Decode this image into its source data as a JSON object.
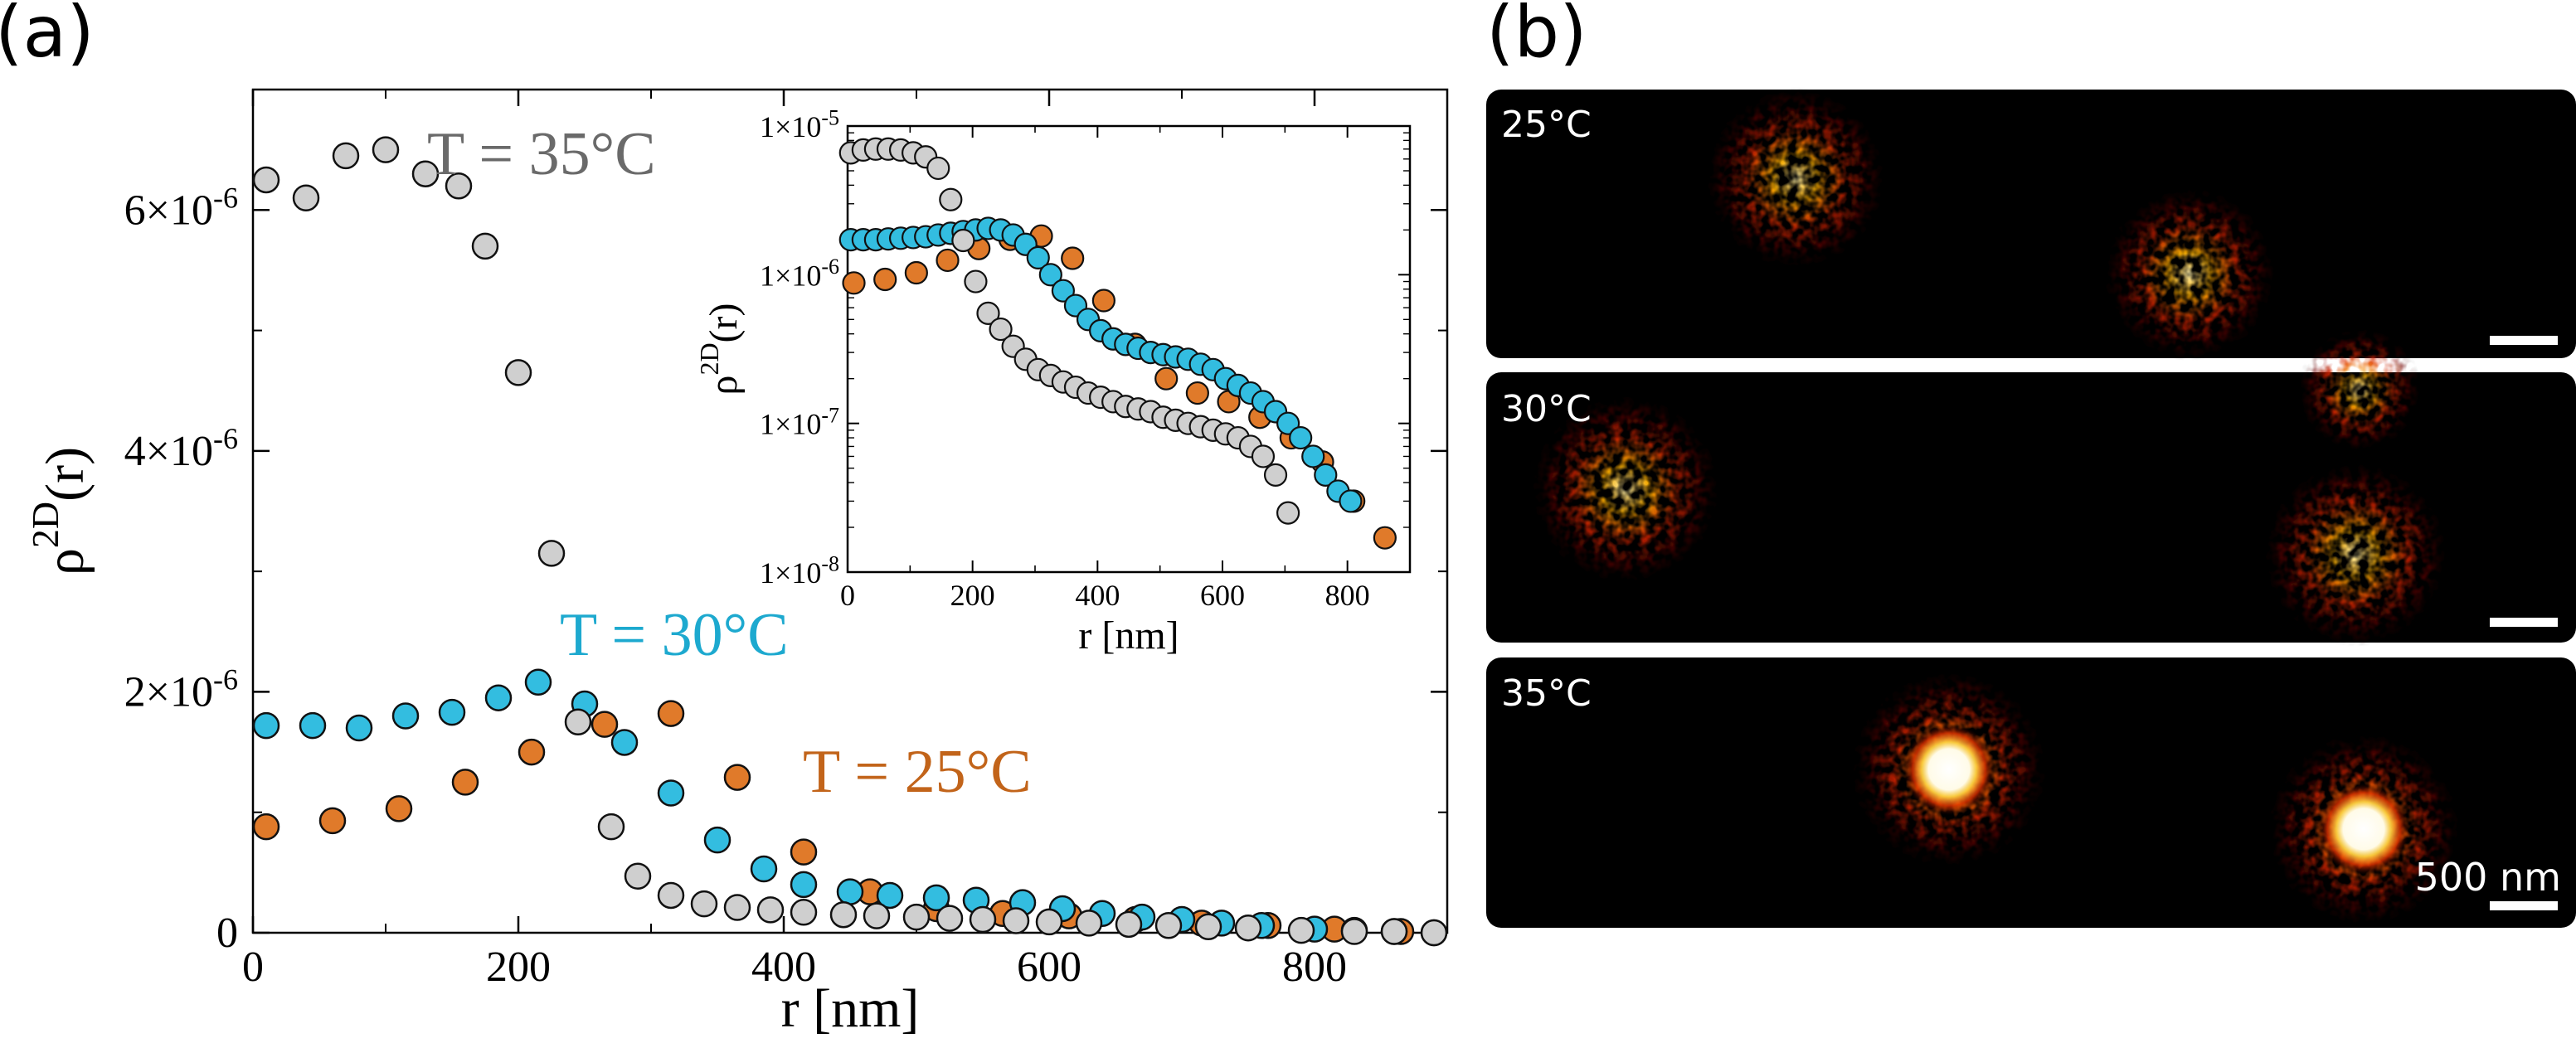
{
  "panels": {
    "a_label": "(a)",
    "b_label": "(b)"
  },
  "chart_data": [
    {
      "type": "scatter",
      "xlabel": "r [nm]",
      "ylabel_base": "ρ",
      "ylabel_sup": "2D",
      "ylabel_tail": "(r)",
      "xlim": [
        0,
        900
      ],
      "ylim": [
        0,
        7e-06
      ],
      "x_ticks": [
        0,
        200,
        400,
        600,
        800
      ],
      "x_tick_labels": [
        "0",
        "200",
        "400",
        "600",
        "800"
      ],
      "y_ticks": [
        0,
        2e-06,
        4e-06,
        6e-06
      ],
      "y_tick_labels": [
        {
          "base": "0",
          "exp": ""
        },
        {
          "base": "2×10",
          "exp": "-6"
        },
        {
          "base": "4×10",
          "exp": "-6"
        },
        {
          "base": "6×10",
          "exp": "-6"
        }
      ],
      "series": [
        {
          "name": "T = 35°C",
          "color": "#cfcfcf",
          "label_color": "#6a6a6a",
          "x": [
            10,
            40,
            70,
            100,
            130,
            155,
            175,
            200,
            225,
            245,
            270,
            290,
            315,
            340,
            365,
            390,
            415,
            445,
            470,
            500,
            525,
            550,
            575,
            600,
            630,
            660,
            690,
            720,
            750,
            790,
            830,
            860,
            890
          ],
          "y": [
            6.25e-06,
            6.1e-06,
            6.45e-06,
            6.5e-06,
            6.3e-06,
            6.2e-06,
            5.7e-06,
            4.65e-06,
            3.15e-06,
            1.75e-06,
            8.8e-07,
            4.7e-07,
            3.1e-07,
            2.4e-07,
            2.1e-07,
            1.9e-07,
            1.7e-07,
            1.5e-07,
            1.4e-07,
            1.3e-07,
            1.2e-07,
            1.1e-07,
            1e-07,
            9e-08,
            8e-08,
            7e-08,
            6e-08,
            5e-08,
            4e-08,
            2e-08,
            1e-08,
            1e-08,
            0.0
          ]
        },
        {
          "name": "T = 30°C",
          "color": "#33bde0",
          "label_color": "#1da9cf",
          "x": [
            10,
            45,
            80,
            115,
            150,
            185,
            215,
            250,
            280,
            315,
            350,
            385,
            415,
            450,
            480,
            515,
            545,
            580,
            610,
            640,
            670,
            700,
            730,
            760,
            800,
            830,
            860,
            890
          ],
          "y": [
            1.72e-06,
            1.72e-06,
            1.7e-06,
            1.8e-06,
            1.83e-06,
            1.95e-06,
            2.08e-06,
            1.9e-06,
            1.58e-06,
            1.16e-06,
            7.7e-07,
            5.3e-07,
            4e-07,
            3.4e-07,
            3.1e-07,
            2.9e-07,
            2.7e-07,
            2.5e-07,
            2e-07,
            1.6e-07,
            1.3e-07,
            1.1e-07,
            8e-08,
            6e-08,
            3e-08,
            2e-08,
            1e-08,
            0.0
          ]
        },
        {
          "name": "T = 25°C",
          "color": "#e07a2a",
          "label_color": "#c2641a",
          "x": [
            10,
            60,
            110,
            160,
            210,
            265,
            315,
            365,
            415,
            465,
            515,
            565,
            615,
            665,
            715,
            765,
            815,
            865
          ],
          "y": [
            8.8e-07,
            9.3e-07,
            1.03e-06,
            1.25e-06,
            1.5e-06,
            1.73e-06,
            1.82e-06,
            1.29e-06,
            6.7e-07,
            3.4e-07,
            2e-07,
            1.6e-07,
            1.4e-07,
            1.1e-07,
            8e-08,
            6e-08,
            3e-08,
            1e-08
          ]
        }
      ]
    },
    {
      "type": "scatter",
      "scale": "log",
      "xlabel": "r [nm]",
      "ylabel_base": "ρ",
      "ylabel_sup": "2D",
      "ylabel_tail": "(r)",
      "xlim": [
        0,
        900
      ],
      "ylim": [
        1e-08,
        1e-05
      ],
      "x_ticks": [
        0,
        200,
        400,
        600,
        800
      ],
      "x_tick_labels": [
        "0",
        "200",
        "400",
        "600",
        "800"
      ],
      "y_ticks": [
        1e-08,
        1e-07,
        1e-06,
        1e-05
      ],
      "y_tick_labels": [
        {
          "base": "1×10",
          "exp": "-8"
        },
        {
          "base": "1×10",
          "exp": "-7"
        },
        {
          "base": "1×10",
          "exp": "-6"
        },
        {
          "base": "1×10",
          "exp": "-5"
        }
      ],
      "series": [
        {
          "color": "#cfcfcf",
          "x": [
            5,
            25,
            45,
            65,
            85,
            105,
            125,
            145,
            165,
            185,
            205,
            225,
            245,
            265,
            285,
            305,
            325,
            345,
            365,
            385,
            405,
            425,
            445,
            465,
            485,
            505,
            525,
            545,
            565,
            585,
            605,
            625,
            645,
            665,
            685,
            705
          ],
          "y": [
            6.6e-06,
            6.9e-06,
            7e-06,
            7e-06,
            6.9e-06,
            6.6e-06,
            6.2e-06,
            5.2e-06,
            3.2e-06,
            1.7e-06,
            9e-07,
            5.5e-07,
            4.3e-07,
            3.3e-07,
            2.7e-07,
            2.3e-07,
            2.1e-07,
            1.9e-07,
            1.75e-07,
            1.6e-07,
            1.5e-07,
            1.4e-07,
            1.3e-07,
            1.25e-07,
            1.2e-07,
            1.1e-07,
            1.05e-07,
            1e-07,
            9.5e-08,
            9e-08,
            8.5e-08,
            8e-08,
            7e-08,
            6e-08,
            4.5e-08,
            2.5e-08
          ]
        },
        {
          "color": "#33bde0",
          "x": [
            5,
            25,
            45,
            65,
            85,
            105,
            125,
            145,
            165,
            185,
            205,
            225,
            245,
            265,
            285,
            305,
            325,
            345,
            365,
            385,
            405,
            425,
            445,
            465,
            485,
            505,
            525,
            545,
            565,
            585,
            605,
            625,
            645,
            665,
            685,
            705,
            725,
            745,
            765,
            785,
            805
          ],
          "y": [
            1.72e-06,
            1.72e-06,
            1.72e-06,
            1.74e-06,
            1.76e-06,
            1.78e-06,
            1.8e-06,
            1.85e-06,
            1.9e-06,
            1.95e-06,
            2e-06,
            2.05e-06,
            2e-06,
            1.85e-06,
            1.6e-06,
            1.3e-06,
            1e-06,
            7.8e-07,
            6.2e-07,
            5e-07,
            4.2e-07,
            3.7e-07,
            3.4e-07,
            3.2e-07,
            3e-07,
            2.9e-07,
            2.8e-07,
            2.7e-07,
            2.5e-07,
            2.3e-07,
            2e-07,
            1.8e-07,
            1.6e-07,
            1.4e-07,
            1.2e-07,
            1e-07,
            8e-08,
            6e-08,
            4.5e-08,
            3.5e-08,
            3e-08
          ]
        },
        {
          "color": "#e07a2a",
          "x": [
            10,
            60,
            110,
            160,
            210,
            260,
            310,
            360,
            410,
            460,
            510,
            560,
            610,
            660,
            710,
            760,
            810,
            860
          ],
          "y": [
            8.8e-07,
            9.3e-07,
            1.03e-06,
            1.25e-06,
            1.5e-06,
            1.73e-06,
            1.82e-06,
            1.29e-06,
            6.7e-07,
            3.4e-07,
            2e-07,
            1.6e-07,
            1.4e-07,
            1.1e-07,
            8e-08,
            5.5e-08,
            3e-08,
            1.7e-08
          ]
        }
      ]
    }
  ],
  "micrographs": [
    {
      "label": "25°C",
      "scale_text": ""
    },
    {
      "label": "30°C",
      "scale_text": ""
    },
    {
      "label": "35°C",
      "scale_text": "500 nm"
    }
  ]
}
